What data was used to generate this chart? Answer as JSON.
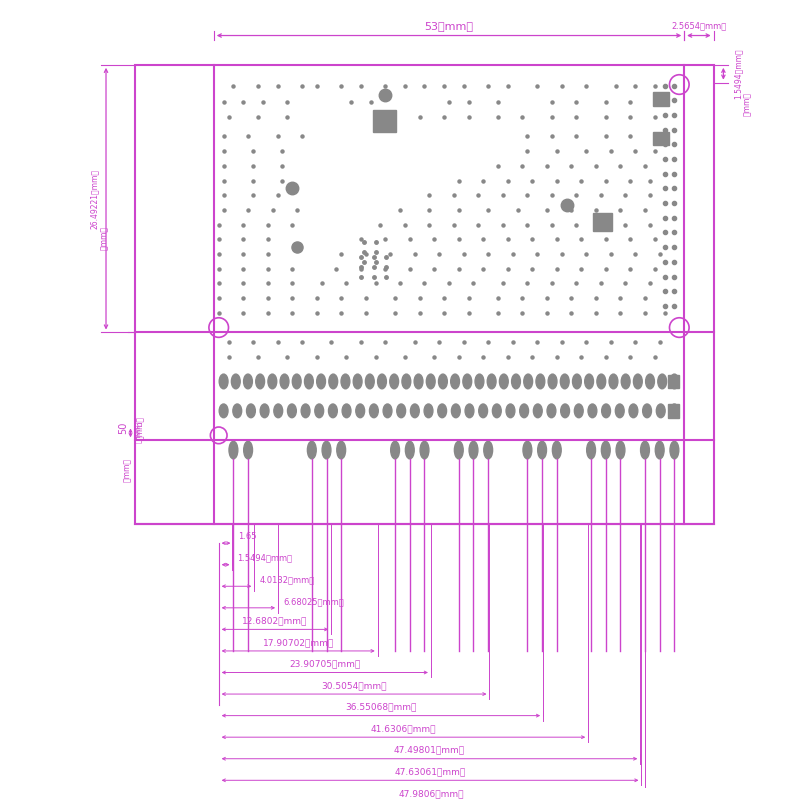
{
  "bg_color": "#ffffff",
  "lc": "#cc44cc",
  "dc": "#888888",
  "figw": 8.0,
  "figh": 8.0,
  "dpi": 100,
  "dim_labels": {
    "top_53": "53（mm）",
    "top_2565": "2.5654（mm）",
    "left_26": "26.49221（mm）",
    "left_mm": "（mm）",
    "left_50": "50",
    "right_1549": "1.5494（mm）",
    "right_mm": "（mm）",
    "bot_mm": "（mm）",
    "b0": "1.65",
    "b1": "1.5494（mm）",
    "b2": "4.0132（mm）",
    "b3": "6.68025（mm）",
    "b4": "12.6802（mm）",
    "b5": "17.90702（mm）",
    "b6": "23.90705（mm）",
    "b7": "30.5054（mm）",
    "b8": "36.55068（mm）",
    "b9": "41.6306（mm）",
    "b10": "47.49801（mm）",
    "b11": "47.63061（mm）",
    "b12": "47.9806（mm）"
  }
}
